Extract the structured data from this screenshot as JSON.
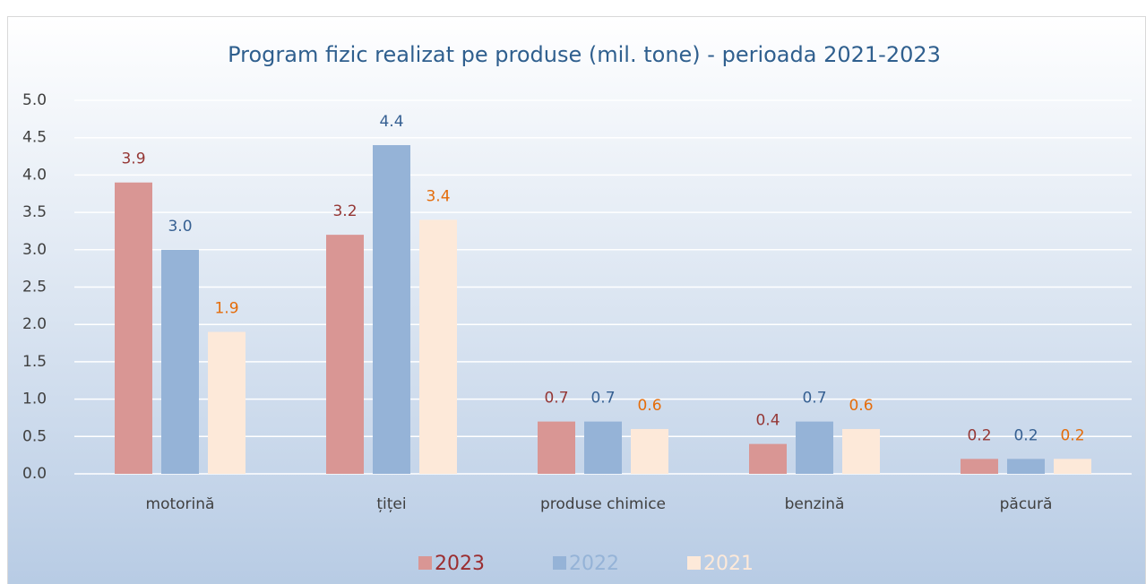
{
  "chart_data": {
    "type": "bar",
    "title": "Program fizic realizat pe produse (mil. tone) - perioada 2021-2023",
    "categories": [
      "motorină",
      "țiței",
      "produse chimice",
      "benzină",
      "păcură"
    ],
    "series": [
      {
        "name": "2023",
        "color": "#d99694",
        "label_color": "#953735",
        "values": [
          3.9,
          3.2,
          0.7,
          0.4,
          0.2
        ],
        "value_labels": [
          "3.9",
          "3.2",
          "0.7",
          "0.4",
          "0.2"
        ]
      },
      {
        "name": "2022",
        "color": "#95b3d7",
        "label_color": "#366092",
        "values": [
          3.0,
          4.4,
          0.7,
          0.7,
          0.2
        ],
        "value_labels": [
          "3.0",
          "4.4",
          "0.7",
          "0.7",
          "0.2"
        ]
      },
      {
        "name": "2021",
        "color": "#fde9d9",
        "label_color": "#e46c0a",
        "values": [
          1.9,
          3.4,
          0.6,
          0.6,
          0.2
        ],
        "value_labels": [
          "1.9",
          "3.4",
          "0.6",
          "0.6",
          "0.2"
        ]
      }
    ],
    "legend_text_colors": [
      "#9b2d30",
      "#95b3d7",
      "#fde9d9"
    ],
    "ylim": [
      0,
      5
    ],
    "yticks": [
      {
        "value": 0,
        "label": "0.0"
      },
      0.5,
      {
        "value": 1,
        "label": "1.0"
      },
      1.5,
      {
        "value": 2,
        "label": "2.0"
      },
      2.5,
      {
        "value": 3,
        "label": "3.0"
      },
      3.5,
      {
        "value": 4,
        "label": "4.0"
      },
      4.5,
      {
        "value": 5,
        "label": "5.0"
      }
    ],
    "grid": true,
    "legend": "bottom"
  }
}
